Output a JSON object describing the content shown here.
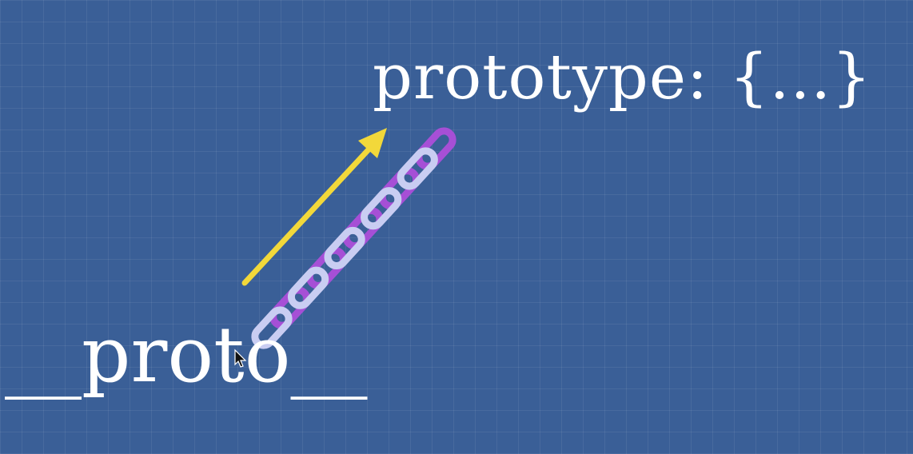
{
  "diagram": {
    "target_label": "prototype: {...}",
    "source_label": "__proto__"
  },
  "colors": {
    "background": "#3a5f97",
    "arrow": "#f2d83a",
    "chain_dark": "#a64fd6",
    "chain_light": "#c9cdf2",
    "text": "#ffffff"
  },
  "icons": {
    "arrow": "arrow-up-right-icon",
    "chain": "chain-link-icon",
    "cursor": "mouse-pointer-icon"
  }
}
